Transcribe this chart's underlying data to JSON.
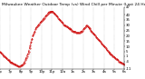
{
  "title": "Milwaukee Weather Outdoor Temp (vs) Wind Chill per Minute (Last 24 Hours)",
  "background_color": "#ffffff",
  "line_color": "#cc0000",
  "grid_color": "#999999",
  "text_color": "#000000",
  "ylim": [
    -11,
    47
  ],
  "yticks": [
    47,
    40,
    35,
    30,
    25,
    20,
    15,
    10,
    5,
    1,
    -4,
    -11
  ],
  "ytick_labels": [
    "47",
    "40",
    "35",
    "30",
    "25",
    "20",
    "15",
    "10",
    "5",
    "1",
    "-4",
    "-11"
  ],
  "x_data": [
    0,
    1,
    2,
    3,
    4,
    5,
    6,
    7,
    8,
    9,
    10,
    11,
    12,
    13,
    14,
    15,
    16,
    17,
    18,
    19,
    20,
    21,
    22,
    23,
    24,
    25,
    26,
    27,
    28,
    29,
    30,
    31,
    32,
    33,
    34,
    35,
    36,
    37,
    38,
    39,
    40,
    41,
    42,
    43,
    44,
    45,
    46,
    47,
    48,
    49,
    50,
    51,
    52,
    53,
    54,
    55,
    56,
    57,
    58,
    59,
    60,
    61,
    62,
    63,
    64,
    65,
    66,
    67,
    68,
    69,
    70,
    71,
    72,
    73,
    74,
    75,
    76,
    77,
    78,
    79,
    80,
    81,
    82,
    83,
    84,
    85,
    86,
    87,
    88,
    89,
    90,
    91,
    92,
    93,
    94,
    95,
    96,
    97,
    98,
    99,
    100,
    101,
    102,
    103,
    104,
    105,
    106,
    107,
    108,
    109,
    110,
    111,
    112,
    113,
    114,
    115,
    116,
    117,
    118,
    119,
    120,
    121,
    122,
    123,
    124,
    125,
    126,
    127,
    128,
    129,
    130,
    131,
    132,
    133,
    134,
    135,
    136,
    137,
    138,
    139,
    140,
    141,
    142,
    143
  ],
  "y_data": [
    5,
    4,
    3,
    2,
    1,
    1,
    0,
    -1,
    -2,
    -3,
    -3,
    -4,
    -4,
    -5,
    -5,
    -6,
    -6,
    -7,
    -7,
    -8,
    -8,
    -9,
    -9,
    -9,
    -8,
    -8,
    -7,
    -6,
    -5,
    -3,
    -1,
    1,
    3,
    5,
    8,
    11,
    14,
    17,
    20,
    22,
    24,
    26,
    28,
    29,
    30,
    31,
    32,
    33,
    34,
    35,
    36,
    37,
    38,
    39,
    40,
    41,
    42,
    43,
    43,
    43,
    43,
    43,
    42,
    41,
    40,
    39,
    38,
    37,
    36,
    35,
    34,
    33,
    32,
    31,
    30,
    30,
    29,
    29,
    28,
    27,
    27,
    26,
    26,
    25,
    25,
    24,
    24,
    24,
    23,
    23,
    23,
    23,
    23,
    24,
    24,
    25,
    26,
    27,
    28,
    29,
    30,
    29,
    28,
    27,
    26,
    25,
    24,
    23,
    22,
    21,
    20,
    19,
    18,
    17,
    16,
    15,
    14,
    13,
    12,
    11,
    10,
    9,
    8,
    7,
    6,
    5,
    4,
    3,
    2,
    2,
    1,
    1,
    0,
    -1,
    -2,
    -2,
    -3,
    -4,
    -4,
    -5,
    -5,
    -6,
    -6,
    -7
  ],
  "vgrid_positions": [
    0,
    12,
    24,
    36,
    48,
    60,
    72,
    84,
    96,
    108,
    120,
    132,
    143
  ],
  "xtick_positions": [
    0,
    12,
    24,
    36,
    48,
    60,
    72,
    84,
    96,
    108,
    120,
    132,
    143
  ],
  "xtick_labels": [
    "6p",
    "7p",
    "8p",
    "9p",
    "10p",
    "11p",
    "12a",
    "1a",
    "2a",
    "3a",
    "4a",
    "5a",
    "6a"
  ],
  "title_fontsize": 3.2,
  "tick_fontsize": 2.8,
  "linewidth": 0.6,
  "linestyle": "--",
  "marker": ".",
  "markersize": 0.8
}
